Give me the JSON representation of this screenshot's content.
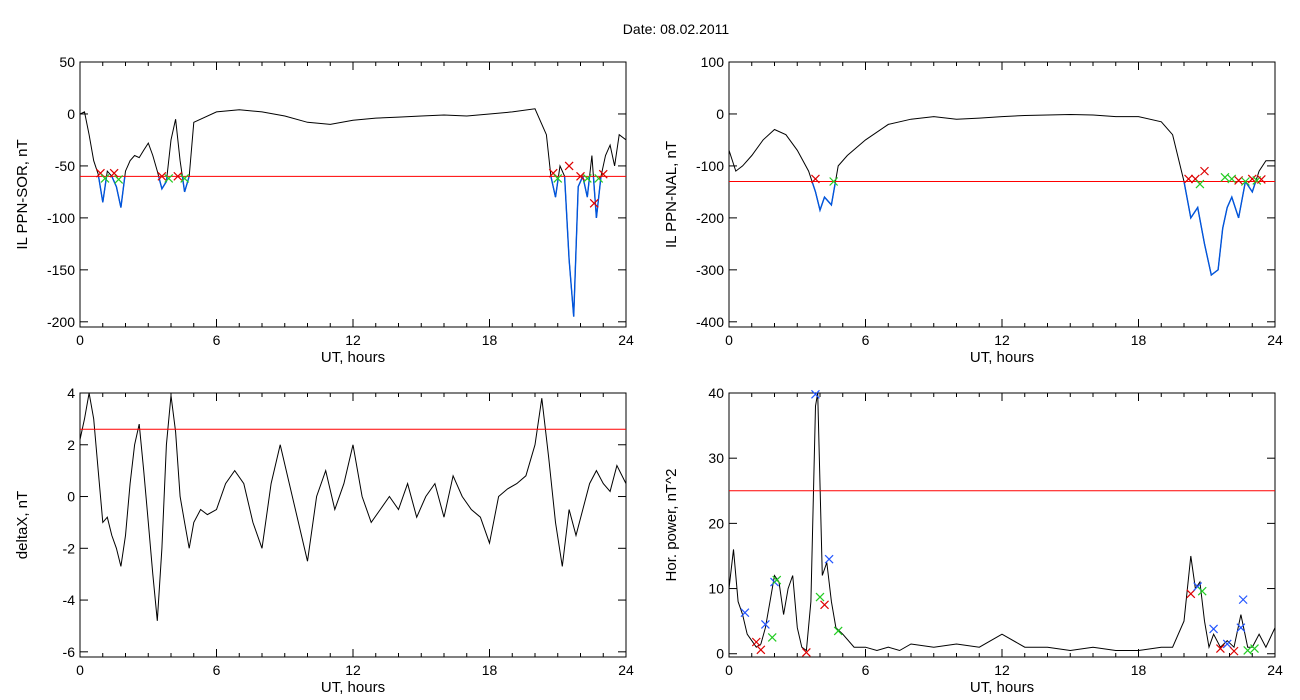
{
  "figure": {
    "title": "Date:  08.02.2011"
  },
  "colors": {
    "series": "#000000",
    "threshold": "#ff0000",
    "below": "#0055dd",
    "marker_red": "#dd0000",
    "marker_green": "#22cc22",
    "marker_blue": "#2255ff"
  },
  "chart_data": [
    {
      "type": "line",
      "xlabel": "UT, hours",
      "ylabel": "IL PPN-SOR, nT",
      "xlim": [
        0,
        24
      ],
      "ylim": [
        -205,
        50
      ],
      "xticks": [
        0,
        6,
        12,
        18,
        24
      ],
      "yticks": [
        50,
        0,
        -50,
        -100,
        -150,
        -200
      ],
      "threshold": -60,
      "series": [
        {
          "x": [
            0,
            0.2,
            0.4,
            0.6,
            0.8,
            1.0,
            1.2,
            1.4,
            1.6,
            1.8,
            2.0,
            2.2,
            2.4,
            2.6,
            2.8,
            3.0,
            3.2,
            3.4,
            3.6,
            3.8,
            4.0,
            4.2,
            4.4,
            4.6,
            4.8,
            5.0,
            6,
            7,
            8,
            9,
            10,
            11,
            12,
            13,
            14,
            15,
            16,
            17,
            18,
            19,
            20,
            20.5,
            20.7,
            20.9,
            21.1,
            21.3,
            21.5,
            21.7,
            21.9,
            22.1,
            22.3,
            22.5,
            22.7,
            22.9,
            23.1,
            23.3,
            23.5,
            23.7,
            24
          ],
          "y": [
            0,
            2,
            -20,
            -45,
            -58,
            -85,
            -55,
            -60,
            -70,
            -90,
            -55,
            -45,
            -40,
            -42,
            -35,
            -28,
            -40,
            -55,
            -72,
            -65,
            -25,
            -5,
            -45,
            -75,
            -60,
            -8,
            2,
            4,
            2,
            -2,
            -8,
            -10,
            -6,
            -4,
            -3,
            -2,
            -1,
            -2,
            0,
            2,
            5,
            -20,
            -60,
            -80,
            -50,
            -60,
            -140,
            -195,
            -70,
            -60,
            -80,
            -40,
            -100,
            -60,
            -40,
            -30,
            -50,
            -20,
            -25
          ]
        }
      ],
      "markers": [
        {
          "x": 0.9,
          "y": -57,
          "c": "red"
        },
        {
          "x": 1.1,
          "y": -62,
          "c": "green"
        },
        {
          "x": 1.5,
          "y": -57,
          "c": "red"
        },
        {
          "x": 1.7,
          "y": -63,
          "c": "green"
        },
        {
          "x": 3.6,
          "y": -60,
          "c": "red"
        },
        {
          "x": 3.9,
          "y": -62,
          "c": "green"
        },
        {
          "x": 4.3,
          "y": -60,
          "c": "red"
        },
        {
          "x": 4.6,
          "y": -62,
          "c": "green"
        },
        {
          "x": 20.8,
          "y": -57,
          "c": "red"
        },
        {
          "x": 21.0,
          "y": -62,
          "c": "green"
        },
        {
          "x": 21.5,
          "y": -50,
          "c": "red"
        },
        {
          "x": 22.0,
          "y": -60,
          "c": "red"
        },
        {
          "x": 22.3,
          "y": -62,
          "c": "green"
        },
        {
          "x": 22.6,
          "y": -86,
          "c": "red"
        },
        {
          "x": 22.8,
          "y": -62,
          "c": "green"
        },
        {
          "x": 23.0,
          "y": -58,
          "c": "red"
        }
      ]
    },
    {
      "type": "line",
      "xlabel": "UT, hours",
      "ylabel": "IL PPN-NAL, nT",
      "xlim": [
        0,
        24
      ],
      "ylim": [
        -410,
        100
      ],
      "xticks": [
        0,
        6,
        12,
        18,
        24
      ],
      "yticks": [
        100,
        0,
        -100,
        -200,
        -300,
        -400
      ],
      "threshold": -130,
      "series": [
        {
          "x": [
            0,
            0.3,
            0.6,
            1.0,
            1.5,
            2.0,
            2.5,
            3.0,
            3.5,
            3.8,
            4.0,
            4.2,
            4.5,
            4.8,
            5.2,
            6,
            7,
            8,
            9,
            10,
            11,
            12,
            13,
            14,
            15,
            16,
            17,
            18,
            19,
            19.5,
            20.0,
            20.3,
            20.6,
            20.9,
            21.2,
            21.5,
            21.7,
            21.9,
            22.1,
            22.4,
            22.7,
            23.0,
            23.3,
            23.6,
            24
          ],
          "y": [
            -70,
            -110,
            -100,
            -80,
            -50,
            -30,
            -40,
            -70,
            -110,
            -150,
            -185,
            -160,
            -175,
            -100,
            -80,
            -50,
            -20,
            -10,
            -5,
            -10,
            -8,
            -5,
            -3,
            -2,
            -1,
            -2,
            -5,
            -5,
            -15,
            -40,
            -130,
            -200,
            -180,
            -250,
            -310,
            -300,
            -220,
            -180,
            -160,
            -200,
            -130,
            -150,
            -110,
            -90,
            -90
          ]
        }
      ],
      "markers": [
        {
          "x": 3.8,
          "y": -125,
          "c": "red"
        },
        {
          "x": 4.6,
          "y": -130,
          "c": "green"
        },
        {
          "x": 20.2,
          "y": -125,
          "c": "red"
        },
        {
          "x": 20.5,
          "y": -125,
          "c": "red"
        },
        {
          "x": 20.7,
          "y": -135,
          "c": "green"
        },
        {
          "x": 20.9,
          "y": -110,
          "c": "red"
        },
        {
          "x": 21.8,
          "y": -122,
          "c": "green"
        },
        {
          "x": 22.1,
          "y": -125,
          "c": "green"
        },
        {
          "x": 22.4,
          "y": -128,
          "c": "red"
        },
        {
          "x": 22.7,
          "y": -130,
          "c": "green"
        },
        {
          "x": 23.0,
          "y": -125,
          "c": "red"
        },
        {
          "x": 23.2,
          "y": -128,
          "c": "green"
        },
        {
          "x": 23.4,
          "y": -126,
          "c": "red"
        }
      ]
    },
    {
      "type": "line",
      "xlabel": "UT, hours",
      "ylabel": "deltaX, nT",
      "xlim": [
        0,
        24
      ],
      "ylim": [
        -6.2,
        4
      ],
      "xticks": [
        0,
        6,
        12,
        18,
        24
      ],
      "yticks": [
        4,
        2,
        0,
        -2,
        -4,
        -6
      ],
      "threshold": 2.6,
      "series": [
        {
          "x": [
            0,
            0.2,
            0.4,
            0.6,
            0.8,
            1.0,
            1.2,
            1.4,
            1.6,
            1.8,
            2.0,
            2.2,
            2.4,
            2.6,
            2.8,
            3.0,
            3.2,
            3.4,
            3.6,
            3.8,
            4.0,
            4.2,
            4.4,
            4.6,
            4.8,
            5.0,
            5.3,
            5.6,
            6.0,
            6.4,
            6.8,
            7.2,
            7.6,
            8.0,
            8.4,
            8.8,
            9.2,
            9.6,
            10.0,
            10.4,
            10.8,
            11.2,
            11.6,
            12.0,
            12.4,
            12.8,
            13.2,
            13.6,
            14.0,
            14.4,
            14.8,
            15.2,
            15.6,
            16.0,
            16.4,
            16.8,
            17.2,
            17.6,
            18.0,
            18.4,
            18.8,
            19.2,
            19.6,
            20.0,
            20.3,
            20.6,
            20.9,
            21.2,
            21.5,
            21.8,
            22.1,
            22.4,
            22.7,
            23.0,
            23.3,
            23.6,
            24
          ],
          "y": [
            2.2,
            3.0,
            4.0,
            3.0,
            1.0,
            -1.0,
            -0.8,
            -1.5,
            -2.0,
            -2.7,
            -1.5,
            0.5,
            2.0,
            2.8,
            1.0,
            -1.0,
            -3.0,
            -4.8,
            -2.0,
            2.0,
            3.9,
            2.5,
            0.0,
            -1.0,
            -2.0,
            -1.0,
            -0.5,
            -0.7,
            -0.5,
            0.5,
            1.0,
            0.5,
            -1.0,
            -2.0,
            0.5,
            2.0,
            0.5,
            -1.0,
            -2.5,
            0.0,
            1.0,
            -0.5,
            0.5,
            2.0,
            0.0,
            -1.0,
            -0.5,
            0.0,
            -0.5,
            0.5,
            -0.8,
            0.0,
            0.5,
            -0.8,
            0.8,
            0.0,
            -0.5,
            -0.8,
            -1.8,
            0.0,
            0.3,
            0.5,
            0.8,
            2.0,
            3.8,
            1.5,
            -1.0,
            -2.7,
            -0.5,
            -1.5,
            -0.5,
            0.5,
            1.0,
            0.5,
            0.2,
            1.2,
            0.5
          ]
        }
      ],
      "markers": []
    },
    {
      "type": "line",
      "xlabel": "UT, hours",
      "ylabel": "Hor. power, nT^2",
      "xlim": [
        0,
        24
      ],
      "ylim": [
        -0.5,
        40
      ],
      "xticks": [
        0,
        6,
        12,
        18,
        24
      ],
      "yticks": [
        40,
        30,
        20,
        10,
        0
      ],
      "threshold": 25,
      "series": [
        {
          "x": [
            0,
            0.2,
            0.4,
            0.6,
            0.8,
            1.0,
            1.2,
            1.4,
            1.6,
            1.8,
            2.0,
            2.2,
            2.4,
            2.6,
            2.8,
            3.0,
            3.2,
            3.4,
            3.6,
            3.8,
            3.9,
            4.1,
            4.3,
            4.5,
            4.7,
            5.0,
            5.5,
            6,
            6.5,
            7,
            7.5,
            8,
            9,
            10,
            11,
            12,
            13,
            14,
            15,
            16,
            17,
            18,
            19,
            19.5,
            20.0,
            20.3,
            20.5,
            20.7,
            20.9,
            21.1,
            21.3,
            21.6,
            21.9,
            22.2,
            22.5,
            22.8,
            23.0,
            23.3,
            23.6,
            24
          ],
          "y": [
            10,
            16,
            8,
            6,
            3,
            2,
            1,
            1.5,
            4,
            8,
            12,
            11,
            6,
            10,
            12,
            4,
            1,
            0.5,
            8,
            38,
            40,
            12,
            14,
            8,
            4,
            3,
            1,
            1,
            0.5,
            1,
            0.5,
            1.5,
            1,
            1.5,
            1,
            3,
            1,
            1,
            0.5,
            1,
            0.5,
            0.5,
            1,
            1,
            5,
            15,
            10,
            11,
            5,
            1,
            3,
            1,
            2,
            1,
            6,
            1,
            1,
            3,
            1,
            4
          ]
        }
      ],
      "markers": [
        {
          "x": 0.7,
          "y": 6.3,
          "c": "blue"
        },
        {
          "x": 1.2,
          "y": 1.8,
          "c": "red"
        },
        {
          "x": 1.4,
          "y": 0.6,
          "c": "red"
        },
        {
          "x": 1.6,
          "y": 4.5,
          "c": "blue"
        },
        {
          "x": 1.9,
          "y": 2.5,
          "c": "green"
        },
        {
          "x": 2.0,
          "y": 11,
          "c": "blue"
        },
        {
          "x": 2.1,
          "y": 11.3,
          "c": "green"
        },
        {
          "x": 3.4,
          "y": 0.2,
          "c": "red"
        },
        {
          "x": 3.8,
          "y": 39.8,
          "c": "blue"
        },
        {
          "x": 4.0,
          "y": 8.7,
          "c": "green"
        },
        {
          "x": 4.2,
          "y": 7.5,
          "c": "red"
        },
        {
          "x": 4.4,
          "y": 14.5,
          "c": "blue"
        },
        {
          "x": 4.8,
          "y": 3.5,
          "c": "green"
        },
        {
          "x": 20.3,
          "y": 9.2,
          "c": "red"
        },
        {
          "x": 20.6,
          "y": 10.3,
          "c": "blue"
        },
        {
          "x": 20.8,
          "y": 9.6,
          "c": "green"
        },
        {
          "x": 21.3,
          "y": 3.8,
          "c": "blue"
        },
        {
          "x": 21.6,
          "y": 0.8,
          "c": "red"
        },
        {
          "x": 21.9,
          "y": 1.5,
          "c": "blue"
        },
        {
          "x": 22.2,
          "y": 0.4,
          "c": "red"
        },
        {
          "x": 22.5,
          "y": 4.0,
          "c": "blue"
        },
        {
          "x": 22.6,
          "y": 8.3,
          "c": "blue"
        },
        {
          "x": 22.8,
          "y": 0.5,
          "c": "green"
        },
        {
          "x": 23.1,
          "y": 0.8,
          "c": "green"
        }
      ]
    }
  ]
}
